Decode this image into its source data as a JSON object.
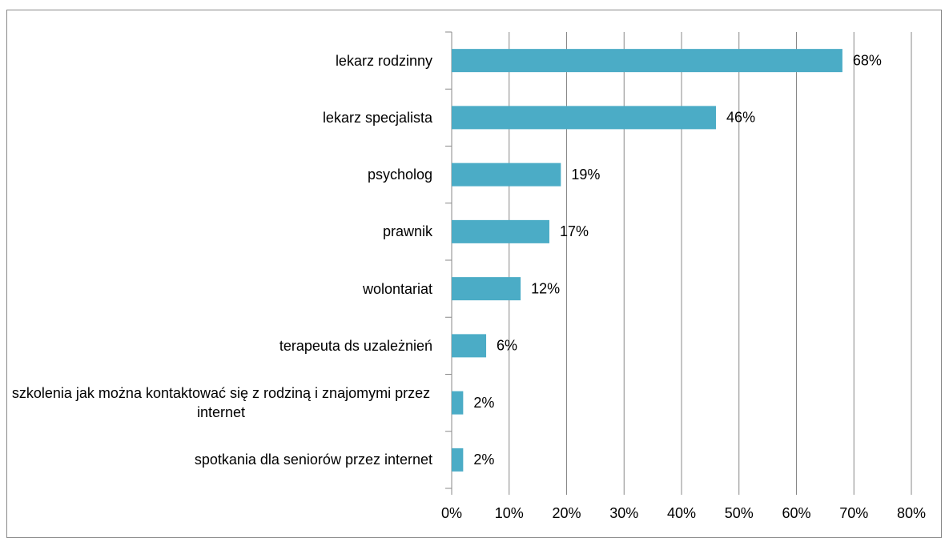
{
  "chart_data": {
    "type": "bar",
    "orientation": "horizontal",
    "categories": [
      "lekarz rodzinny",
      "lekarz specjalista",
      "psycholog",
      "prawnik",
      "wolontariat",
      "terapeuta ds uzależnień",
      "szkolenia jak można kontaktować się z rodziną i znajomymi przez internet",
      "spotkania dla seniorów przez internet"
    ],
    "values": [
      68,
      46,
      19,
      17,
      12,
      6,
      2,
      2
    ],
    "value_labels": [
      "68%",
      "46%",
      "19%",
      "17%",
      "12%",
      "6%",
      "2%",
      "2%"
    ],
    "color": "#4bacc6",
    "xlim": [
      0,
      80
    ],
    "xticks": [
      {
        "value": 0,
        "label": "0%"
      },
      {
        "value": 10,
        "label": "10%"
      },
      {
        "value": 20,
        "label": "20%"
      },
      {
        "value": 30,
        "label": "30%"
      },
      {
        "value": 40,
        "label": "40%"
      },
      {
        "value": 50,
        "label": "50%"
      },
      {
        "value": 60,
        "label": "60%"
      },
      {
        "value": 70,
        "label": "70%"
      },
      {
        "value": 80,
        "label": "80%"
      }
    ],
    "grid": true
  }
}
